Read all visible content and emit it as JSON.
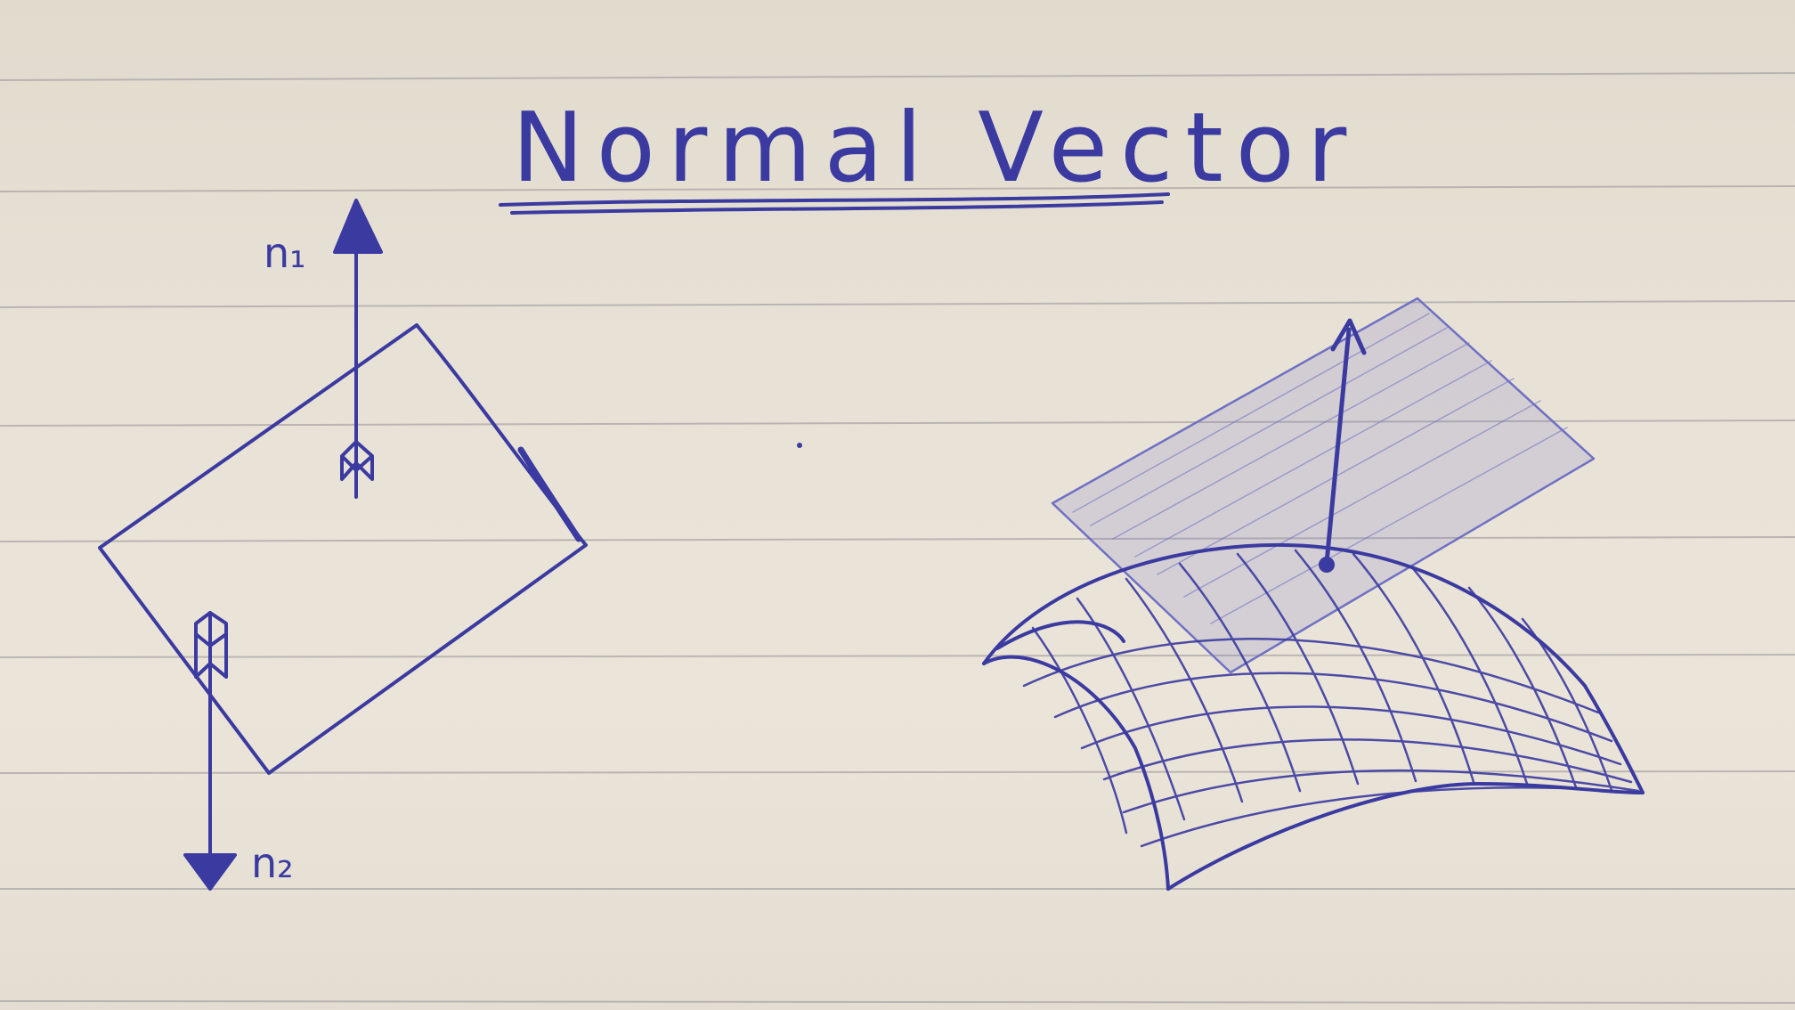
{
  "title": "Normal Vector",
  "labels": {
    "normal_1": "n₁",
    "normal_2": "n₂"
  },
  "colors": {
    "paper": "#e8e2d6",
    "rule_line": "#a9a6a6",
    "ink": "#3b3aa0",
    "ink_light": "#6f70c4"
  }
}
